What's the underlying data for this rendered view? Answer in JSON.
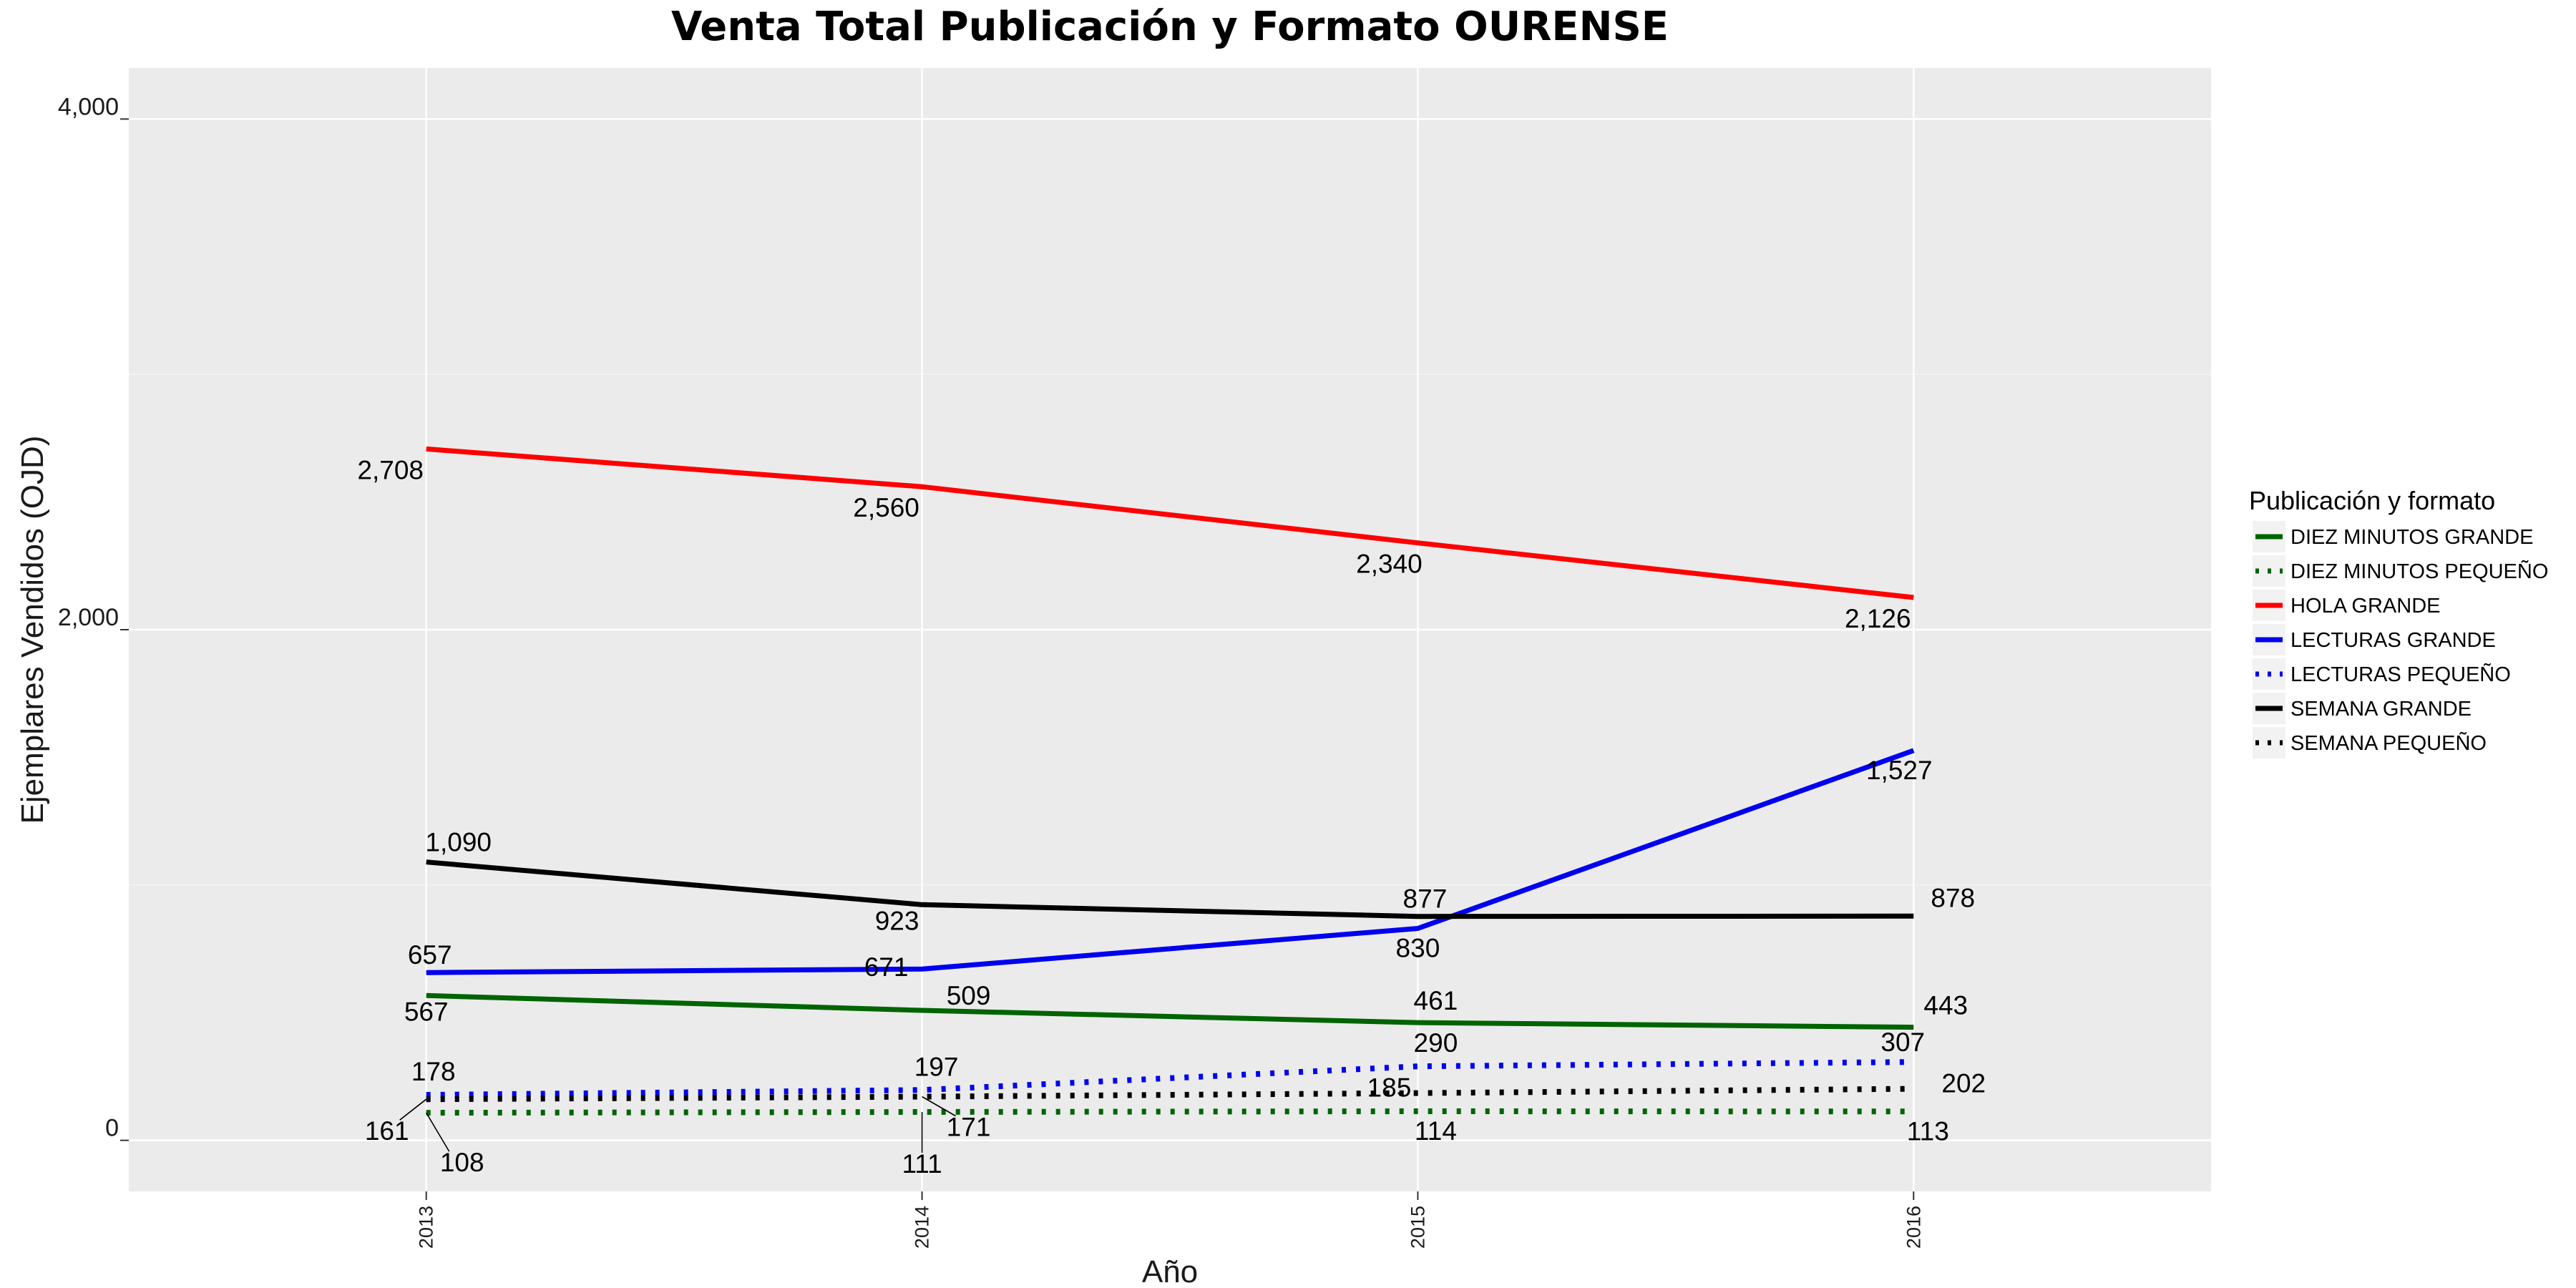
{
  "chart_data": {
    "type": "line",
    "title": "Venta Total Publicación y Formato  OURENSE",
    "xlabel": "Año",
    "ylabel": "Ejemplares Vendidos (OJD)",
    "x": [
      2013,
      2014,
      2015,
      2016
    ],
    "x_tick_labels": [
      "2013",
      "2014",
      "2015",
      "2016"
    ],
    "xlim": [
      2012.4,
      2016.6
    ],
    "ylim": [
      -200,
      4200
    ],
    "y_ticks": [
      0,
      2000,
      4000
    ],
    "y_tick_labels": [
      "0",
      "2,000",
      "4,000"
    ],
    "grid": true,
    "legend": {
      "title": "Publicación y formato",
      "position": "right"
    },
    "series": [
      {
        "name": "DIEZ MINUTOS GRANDE",
        "color": "#006400",
        "dash": "solid",
        "values": [
          567,
          509,
          461,
          443
        ],
        "labels": [
          "567",
          "509",
          "461",
          "443"
        ]
      },
      {
        "name": "DIEZ MINUTOS PEQUEÑO",
        "color": "#006400",
        "dash": "dotted",
        "values": [
          108,
          111,
          114,
          113
        ],
        "labels": [
          "108",
          "111",
          "114",
          "113"
        ]
      },
      {
        "name": "HOLA GRANDE",
        "color": "#ff0000",
        "dash": "solid",
        "values": [
          2708,
          2560,
          2340,
          2126
        ],
        "labels": [
          "2,708",
          "2,560",
          "2,340",
          "2,126"
        ]
      },
      {
        "name": "LECTURAS GRANDE",
        "color": "#0000ee",
        "dash": "solid",
        "values": [
          657,
          671,
          830,
          1527
        ],
        "labels": [
          "657",
          "671",
          "830",
          "1,527"
        ]
      },
      {
        "name": "LECTURAS PEQUEÑO",
        "color": "#0000ee",
        "dash": "dotted",
        "values": [
          178,
          197,
          290,
          307
        ],
        "labels": [
          "178",
          "197",
          "290",
          "307"
        ]
      },
      {
        "name": "SEMANA GRANDE",
        "color": "#000000",
        "dash": "solid",
        "values": [
          1090,
          923,
          877,
          878
        ],
        "labels": [
          "1,090",
          "923",
          "877",
          "878"
        ]
      },
      {
        "name": "SEMANA PEQUEÑO",
        "color": "#000000",
        "dash": "dotted",
        "values": [
          161,
          171,
          185,
          202
        ],
        "labels": [
          "161",
          "171",
          "185",
          "202"
        ]
      }
    ]
  }
}
